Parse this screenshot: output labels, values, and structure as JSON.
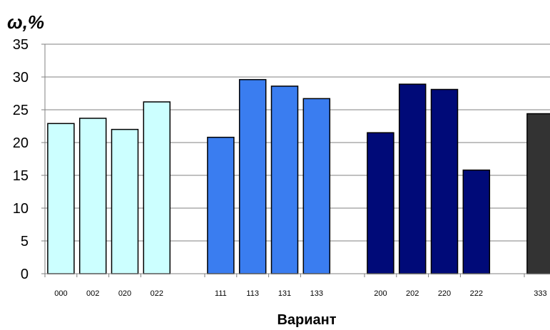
{
  "chart_data": {
    "type": "bar",
    "ylabel": "ω,%",
    "xlabel": "Вариант",
    "ylim": [
      0,
      35
    ],
    "yticks": [
      0,
      5,
      10,
      15,
      20,
      25,
      30,
      35
    ],
    "grid": true,
    "legend": "none",
    "groups": [
      {
        "color": "#ccffff",
        "categories": [
          "000",
          "002",
          "020",
          "022"
        ],
        "values": [
          22.9,
          23.7,
          22.0,
          26.2
        ]
      },
      {
        "color": "#3a7df0",
        "categories": [
          "111",
          "113",
          "131",
          "133"
        ],
        "values": [
          20.8,
          29.6,
          28.6,
          26.7
        ]
      },
      {
        "color": "#000a78",
        "categories": [
          "200",
          "202",
          "220",
          "222"
        ],
        "values": [
          21.5,
          28.9,
          28.1,
          15.8
        ]
      },
      {
        "color": "#333333",
        "categories": [
          "333"
        ],
        "values": [
          24.4
        ]
      }
    ]
  }
}
